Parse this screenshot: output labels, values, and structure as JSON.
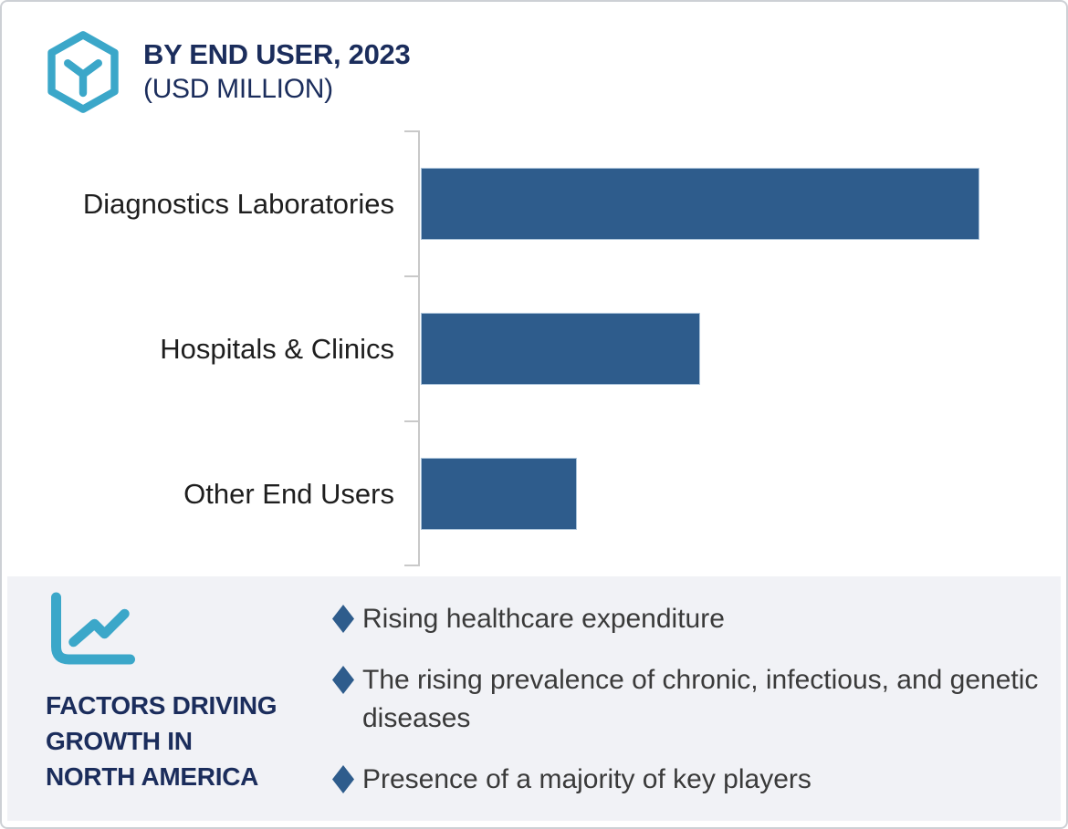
{
  "header": {
    "title": "BY END USER, 2023",
    "subtitle": "(USD MILLION)"
  },
  "chart_data": {
    "type": "bar",
    "orientation": "horizontal",
    "title": "BY END USER, 2023 (USD MILLION)",
    "xlabel": "",
    "ylabel": "",
    "categories": [
      "Diagnostics Laboratories",
      "Hospitals & Clinics",
      "Other End Users"
    ],
    "values": [
      100,
      50,
      28
    ],
    "values_note": "no numeric axis labels shown; values estimated as percent of longest bar",
    "bar_color": "#2e5c8c",
    "axis_color": "#c9c9c9",
    "grid": false,
    "legend": false
  },
  "factors": {
    "heading_lines": [
      "FACTORS DRIVING",
      "GROWTH IN",
      "NORTH AMERICA"
    ],
    "bullets": [
      "Rising healthcare expenditure",
      "The rising prevalence of chronic, infectious, and genetic diseases",
      "Presence of a majority of key players"
    ]
  },
  "colors": {
    "teal_accent": "#3ba7c9",
    "navy_text": "#1b2d5c",
    "bar_blue": "#2e5c8c",
    "panel_background": "#f1f2f6",
    "frame_border": "#cdd0d5",
    "body_text": "#3a3a3a"
  }
}
